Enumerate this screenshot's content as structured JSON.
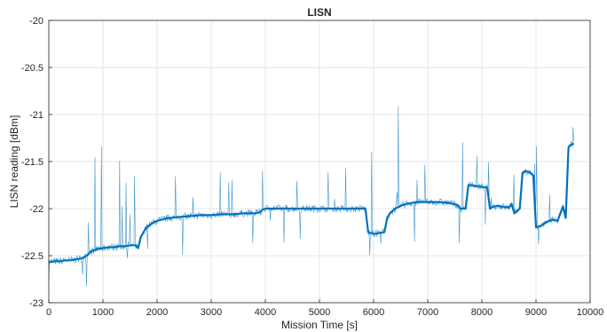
{
  "chart_data": {
    "type": "line",
    "title": "LISN",
    "xlabel": "Mission Time [s]",
    "ylabel": "LISN reading [dBm]",
    "xlim": [
      0,
      10000
    ],
    "ylim": [
      -23,
      -20
    ],
    "xticks": [
      0,
      1000,
      2000,
      3000,
      4000,
      5000,
      6000,
      7000,
      8000,
      9000,
      10000
    ],
    "yticks": [
      -20,
      -20.5,
      -21,
      -21.5,
      -22,
      -22.5,
      -23
    ],
    "grid": true,
    "colors": {
      "line": "#0072BD",
      "grid": "#dfdfdf",
      "axis": "#262626"
    },
    "series": [
      {
        "x": [
          0,
          100,
          200,
          300,
          400,
          500,
          600,
          700,
          750,
          800,
          900,
          1000,
          1100,
          1200,
          1300,
          1400,
          1500,
          1600,
          1650,
          1700,
          1750,
          1800,
          1900,
          2000,
          2200,
          2400,
          2600,
          2800,
          3000,
          3200,
          3400,
          3600,
          3800,
          3900,
          3950,
          4000,
          4200,
          4400,
          4600,
          4800,
          5000,
          5200,
          5400,
          5600,
          5800,
          5850,
          5900,
          6000,
          6100,
          6200,
          6250,
          6300,
          6400,
          6500,
          6600,
          6800,
          7000,
          7200,
          7400,
          7550,
          7600,
          7700,
          7750,
          7800,
          7900,
          8000,
          8100,
          8150,
          8200,
          8300,
          8400,
          8500,
          8550,
          8600,
          8700,
          8750,
          8800,
          8900,
          8950,
          9000,
          9100,
          9200,
          9300,
          9400,
          9450,
          9500,
          9550,
          9600,
          9650,
          9700
        ],
        "y": [
          -22.57,
          -22.56,
          -22.56,
          -22.55,
          -22.55,
          -22.54,
          -22.53,
          -22.5,
          -22.47,
          -22.45,
          -22.43,
          -22.42,
          -22.41,
          -22.41,
          -22.4,
          -22.4,
          -22.39,
          -22.39,
          -22.42,
          -22.3,
          -22.25,
          -22.2,
          -22.16,
          -22.13,
          -22.1,
          -22.09,
          -22.08,
          -22.07,
          -22.07,
          -22.06,
          -22.06,
          -22.05,
          -22.05,
          -22.04,
          -22.01,
          -22.0,
          -22.0,
          -22.0,
          -22.0,
          -22.0,
          -22.0,
          -22.0,
          -22.0,
          -22.0,
          -22.0,
          -22.0,
          -22.25,
          -22.27,
          -22.26,
          -22.25,
          -22.1,
          -22.05,
          -22.0,
          -21.97,
          -21.95,
          -21.93,
          -21.93,
          -21.93,
          -21.94,
          -21.96,
          -22.0,
          -22.0,
          -21.75,
          -21.75,
          -21.76,
          -21.77,
          -21.78,
          -22.0,
          -21.98,
          -21.97,
          -21.98,
          -21.99,
          -21.95,
          -22.05,
          -22.0,
          -21.62,
          -21.6,
          -21.62,
          -21.65,
          -22.2,
          -22.18,
          -22.14,
          -22.12,
          -22.13,
          -22.05,
          -21.98,
          -22.1,
          -21.35,
          -21.32,
          -21.31
        ]
      }
    ]
  }
}
